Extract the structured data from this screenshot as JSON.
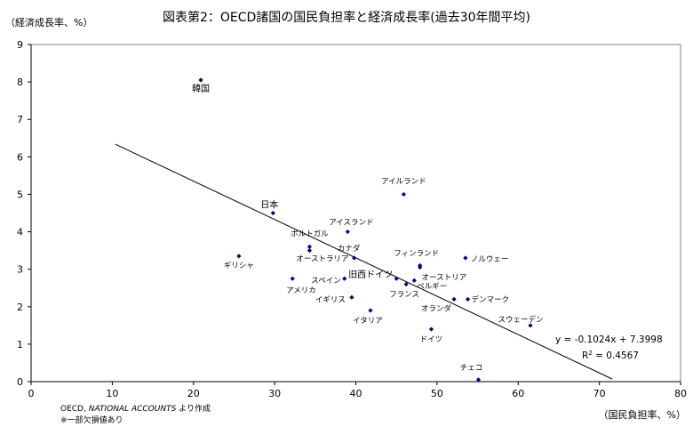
{
  "chart_data": {
    "type": "scatter",
    "title": "図表第2：OECD諸国の国民負担率と経済成長率(過去30年間平均)",
    "ylabel": "（経済成長率、%）",
    "xlabel": "（国民負担率、%）",
    "xlim": [
      0,
      80
    ],
    "ylim": [
      0,
      9
    ],
    "xticks": [
      "0",
      "10",
      "20",
      "30",
      "40",
      "50",
      "60",
      "70",
      "80"
    ],
    "yticks": [
      "0",
      "1",
      "2",
      "3",
      "4",
      "5",
      "6",
      "7",
      "8",
      "9"
    ],
    "grid": false,
    "marker_color": "#000080",
    "points": [
      {
        "label": "韓国",
        "x": 20.9,
        "y": 8.05
      },
      {
        "label": "アイルランド",
        "x": 45.9,
        "y": 5.0
      },
      {
        "label": "日本",
        "x": 29.8,
        "y": 4.5
      },
      {
        "label": "アイスランド",
        "x": 39.0,
        "y": 4.0
      },
      {
        "label": "ポルトガル",
        "x": 34.3,
        "y": 3.6
      },
      {
        "label": "ギリシャ",
        "x": 25.6,
        "y": 3.35
      },
      {
        "label": "カナダ",
        "x": 39.8,
        "y": 3.3
      },
      {
        "label": "オーストラリア",
        "x": 34.3,
        "y": 3.5
      },
      {
        "label": "ノルウェー",
        "x": 53.5,
        "y": 3.3
      },
      {
        "label": "フィンランド",
        "x": 47.9,
        "y": 3.1
      },
      {
        "label": "オーストリア",
        "x": 47.9,
        "y": 3.05
      },
      {
        "label": "旧西ドイツ",
        "x": 45.0,
        "y": 2.75
      },
      {
        "label": "スペイン",
        "x": 38.6,
        "y": 2.75
      },
      {
        "label": "アメリカ",
        "x": 32.2,
        "y": 2.75
      },
      {
        "label": "ベルギー",
        "x": 47.2,
        "y": 2.7
      },
      {
        "label": "フランス",
        "x": 46.2,
        "y": 2.6
      },
      {
        "label": "イギリス",
        "x": 39.5,
        "y": 2.25
      },
      {
        "label": "デンマーク",
        "x": 53.8,
        "y": 2.2
      },
      {
        "label": "オランダ",
        "x": 52.1,
        "y": 2.2
      },
      {
        "label": "イタリア",
        "x": 41.8,
        "y": 1.9
      },
      {
        "label": "スウェーデン",
        "x": 61.5,
        "y": 1.5
      },
      {
        "label": "ドイツ",
        "x": 49.3,
        "y": 1.4
      },
      {
        "label": "チェコ",
        "x": 55.1,
        "y": 0.05
      }
    ],
    "trendline": {
      "slope": -0.1024,
      "intercept": 7.3998,
      "x_range": [
        10.4,
        71.6
      ],
      "equation": "y = -0.1024x + 7.3998",
      "r2_prefix": "R",
      "r2_sup": "2",
      "r2_value": " = 0.4567"
    },
    "notes": [
      "OECD, ",
      "NATIONAL ACCOUNTS",
      " より作成",
      "※一部欠損値あり"
    ]
  }
}
